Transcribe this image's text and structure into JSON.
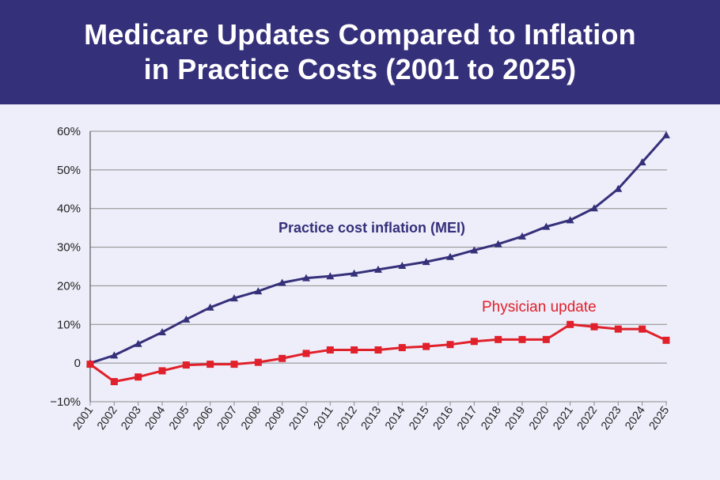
{
  "header": {
    "title_line1": "Medicare Updates Compared to Inflation",
    "title_line2": "in Practice Costs (2001 to 2025)"
  },
  "colors": {
    "header_bg": "#35307a",
    "mei": "#35307a",
    "physician": "#e0202a",
    "grid": "#8a8a8a",
    "background": "#eeeefa"
  },
  "chart_data": {
    "type": "line",
    "title": "Medicare Updates Compared to Inflation in Practice Costs (2001 to 2025)",
    "x": [
      "2001",
      "2002",
      "2003",
      "2004",
      "2005",
      "2006",
      "2007",
      "2008",
      "2009",
      "2010",
      "2011",
      "2012",
      "2013",
      "2014",
      "2015",
      "2016",
      "2017",
      "2018",
      "2019",
      "2020",
      "2021",
      "2022",
      "2023",
      "2024",
      "2025"
    ],
    "yticks": [
      "60%",
      "50%",
      "40%",
      "30%",
      "20%",
      "10%",
      "0",
      "−10%"
    ],
    "ylim": [
      -10,
      60
    ],
    "grid": true,
    "series": [
      {
        "name": "Practice cost inflation (MEI)",
        "marker": "triangle",
        "values": [
          0,
          2,
          5,
          8,
          11.3,
          14.4,
          16.8,
          18.6,
          20.8,
          22,
          22.5,
          23.2,
          24.2,
          25.2,
          26.2,
          27.5,
          29.2,
          30.8,
          32.8,
          35.3,
          37,
          40.1,
          45.1,
          52,
          59
        ]
      },
      {
        "name": "Physician update",
        "marker": "square",
        "values": [
          -0.3,
          -4.8,
          -3.6,
          -2,
          -0.5,
          -0.3,
          -0.3,
          0.2,
          1.2,
          2.5,
          3.4,
          3.4,
          3.4,
          4,
          4.3,
          4.8,
          5.6,
          6.1,
          6.1,
          6.1,
          10,
          9.4,
          8.8,
          8.8,
          5.9
        ]
      }
    ]
  }
}
